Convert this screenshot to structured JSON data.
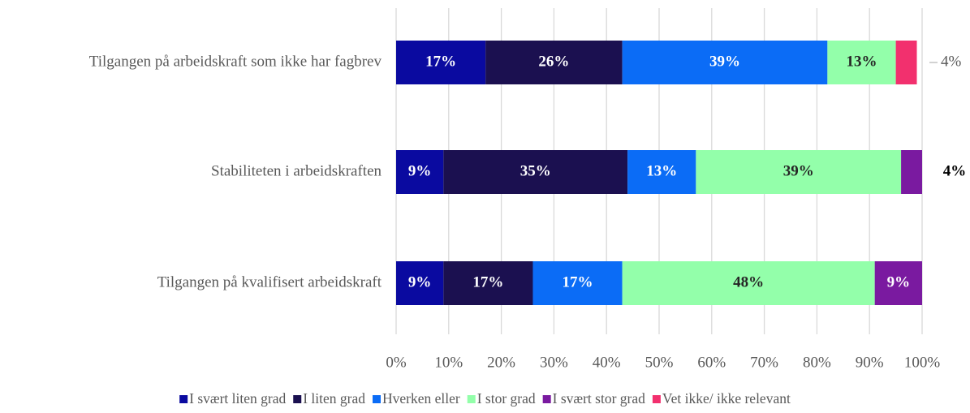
{
  "chart_data": {
    "type": "stacked_barh",
    "categories": [
      "Tilgangen på arbeidskraft som ikke har fagbrev",
      "Stabiliteten i arbeidskraften",
      "Tilgangen på kvalifisert arbeidskraft"
    ],
    "series": [
      {
        "name": "I svært liten grad",
        "color": "#0a0aa0",
        "values": [
          17,
          9,
          9
        ],
        "value_labels": [
          "17%",
          "9%",
          "9%"
        ]
      },
      {
        "name": "I liten grad",
        "color": "#1b1050",
        "values": [
          26,
          35,
          17
        ],
        "value_labels": [
          "26%",
          "35%",
          "17%"
        ]
      },
      {
        "name": "Hverken eller",
        "color": "#0b6cf6",
        "values": [
          39,
          13,
          17
        ],
        "value_labels": [
          "39%",
          "13%",
          "17%"
        ]
      },
      {
        "name": "I stor grad",
        "color": "#93ffaa",
        "values": [
          13,
          39,
          48
        ],
        "value_labels": [
          "13%",
          "39%",
          "48%"
        ]
      },
      {
        "name": "I svært stor grad",
        "color": "#7a1aa0",
        "values": [
          null,
          4,
          9
        ],
        "value_labels": [
          null,
          "4%",
          "9%"
        ]
      },
      {
        "name": "Vet ikke/ ikke relevant",
        "color": "#f2306e",
        "values": [
          4,
          null,
          null
        ],
        "value_labels": [
          "4%",
          null,
          null
        ]
      }
    ],
    "xlim": [
      0,
      100
    ],
    "xticks": [
      {
        "value": 0,
        "label": "0%"
      },
      {
        "value": 10,
        "label": "10%"
      },
      {
        "value": 20,
        "label": "20%"
      },
      {
        "value": 30,
        "label": "30%"
      },
      {
        "value": 40,
        "label": "40%"
      },
      {
        "value": 50,
        "label": "50%"
      },
      {
        "value": 60,
        "label": "60%"
      },
      {
        "value": 70,
        "label": "70%"
      },
      {
        "value": 80,
        "label": "80%"
      },
      {
        "value": 90,
        "label": "90%"
      },
      {
        "value": 100,
        "label": "100%"
      }
    ],
    "grid": true,
    "legend": "bottom"
  }
}
